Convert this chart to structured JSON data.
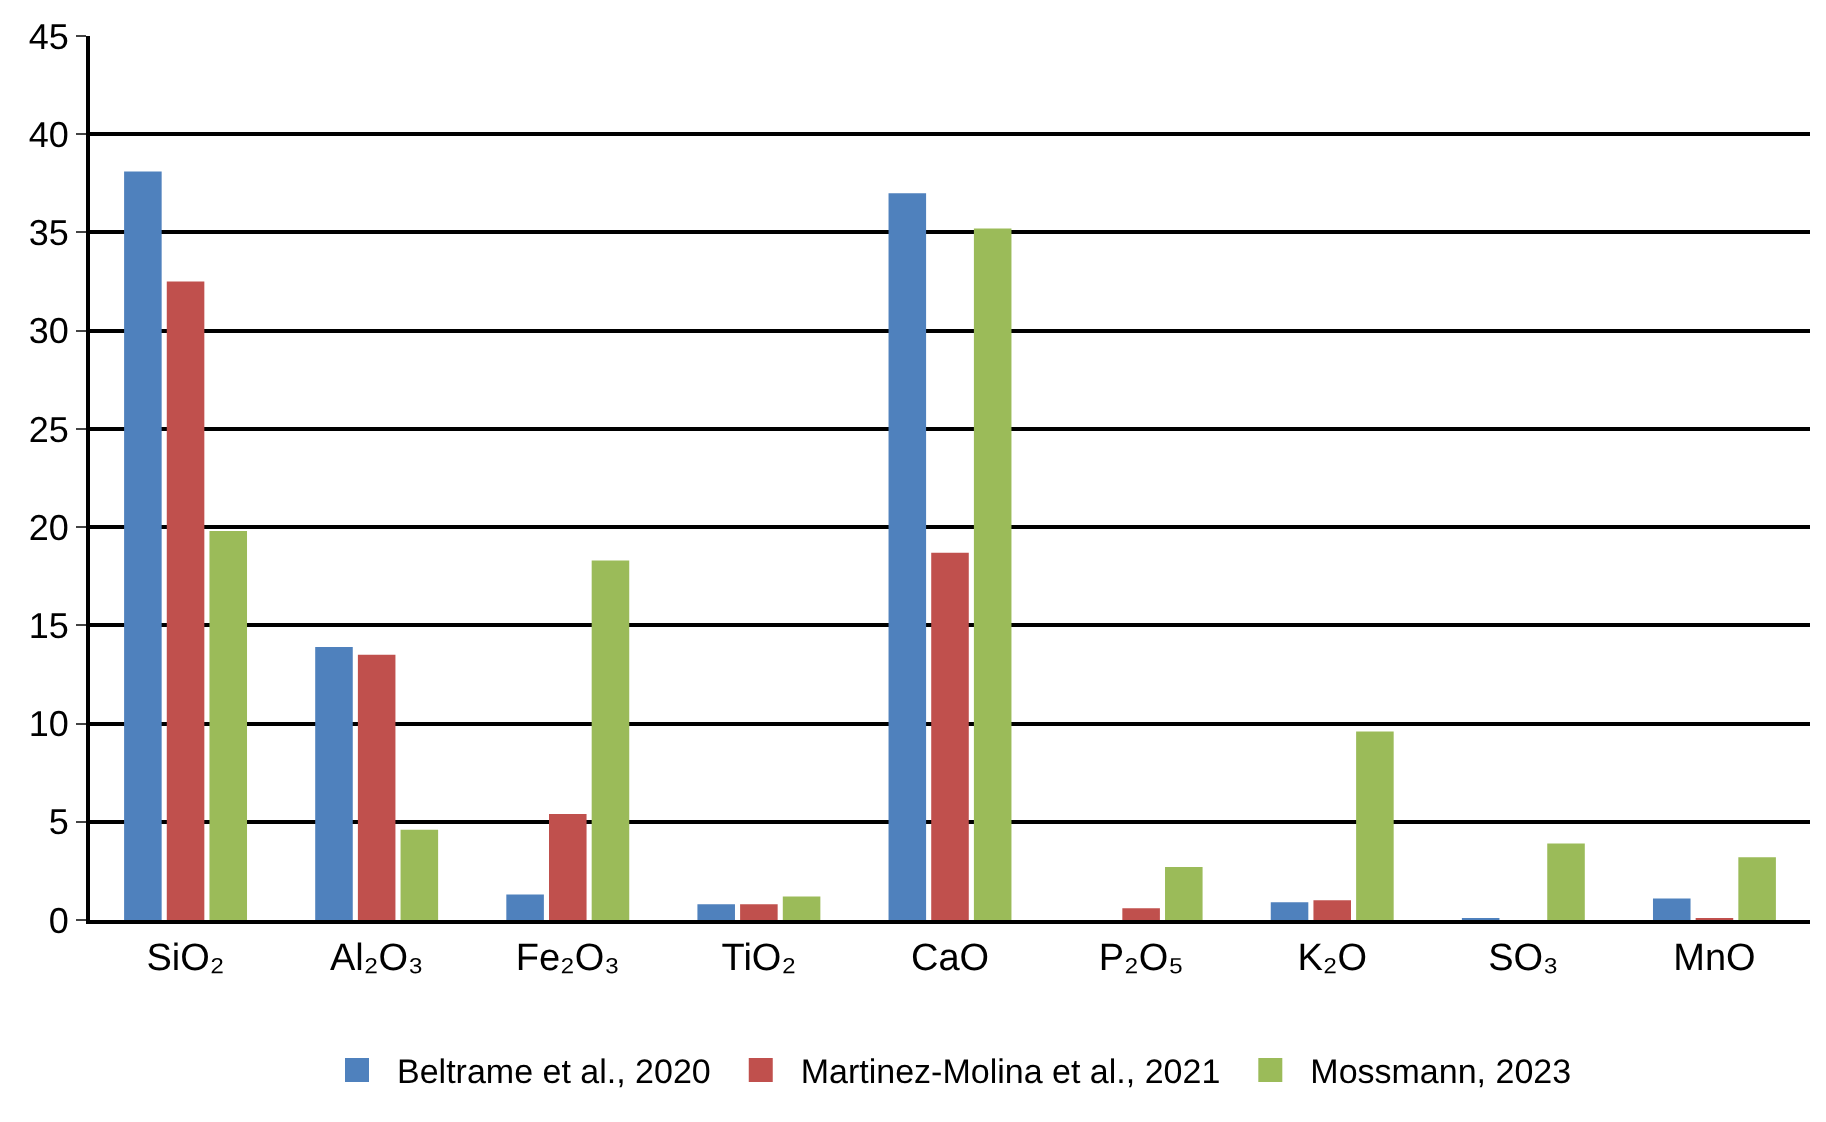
{
  "chart_data": {
    "type": "bar",
    "categories": [
      "SiO₂",
      "Al₂O₃",
      "Fe₂O₃",
      "TiO₂",
      "CaO",
      "P₂O₅",
      "K₂O",
      "SO₃",
      "MnO"
    ],
    "series": [
      {
        "name": "Beltrame et al., 2020",
        "color": "#4f81bd",
        "values": [
          38.1,
          13.9,
          1.3,
          0.8,
          37.0,
          null,
          0.9,
          0.1,
          1.1
        ]
      },
      {
        "name": "Martinez-Molina et al., 2021",
        "color": "#c0504d",
        "values": [
          32.5,
          13.5,
          5.4,
          0.8,
          18.7,
          0.6,
          1.0,
          null,
          0.1
        ]
      },
      {
        "name": "Mossmann, 2023",
        "color": "#9bbb59",
        "values": [
          19.8,
          4.6,
          18.3,
          1.2,
          35.2,
          2.7,
          9.6,
          3.9,
          3.2
        ]
      }
    ],
    "ylim": [
      0,
      45
    ],
    "yticks": [
      0,
      5,
      10,
      15,
      20,
      25,
      30,
      35,
      40,
      45
    ],
    "grid": "y",
    "legend": "bottom"
  }
}
